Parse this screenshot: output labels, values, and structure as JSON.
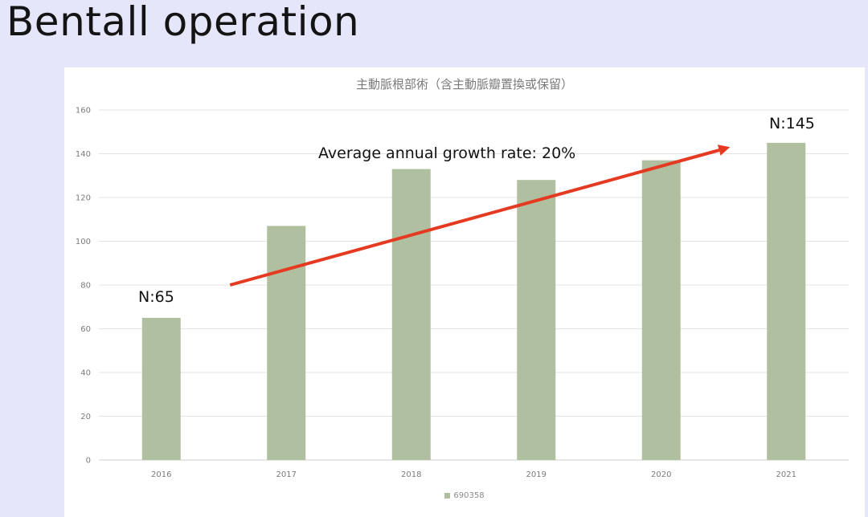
{
  "slide": {
    "title": "Bentall operation"
  },
  "annotations": {
    "growth": "Average annual growth rate: 20%",
    "first": "N:65",
    "last": "N:145"
  },
  "colors": {
    "bar": "#b0bfa0",
    "arrow": "#e53a22",
    "grid": "#e3e3e3",
    "background": "#e6e6fb"
  },
  "chart_data": {
    "type": "bar",
    "title": "主動脈根部術（含主動脈瓣置換或保留）",
    "categories": [
      "2016",
      "2017",
      "2018",
      "2019",
      "2020",
      "2021"
    ],
    "series": [
      {
        "name": "690358",
        "values": [
          65,
          107,
          133,
          128,
          137,
          145
        ]
      }
    ],
    "ylim": [
      0,
      160
    ],
    "yticks": [
      0,
      20,
      40,
      60,
      80,
      100,
      120,
      140,
      160
    ],
    "grid": true,
    "legend": "bottom",
    "trend_arrow": {
      "from": {
        "x": "2016",
        "y": 80
      },
      "to": {
        "x": "2020",
        "y": 143
      }
    }
  }
}
